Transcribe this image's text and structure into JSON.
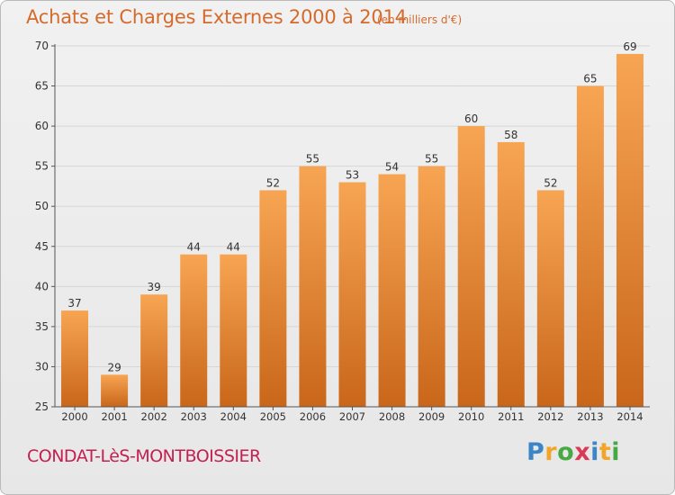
{
  "header": {
    "title": "Achats et Charges Externes 2000 à 2014",
    "subtitle": "(en milliers d'€)"
  },
  "footer": {
    "commune": "CONDAT-LèS-MONTBOISSIER",
    "logo_text": "Proxiti"
  },
  "colors": {
    "bar_light": "#f7a553",
    "bar_dark": "#c9661a",
    "title": "#d46b2c",
    "commune": "#c41f50",
    "grid": "#d6d6d6"
  },
  "chart_data": {
    "type": "bar",
    "title": "Achats et Charges Externes 2000 à 2014",
    "subtitle": "(en milliers d'€)",
    "xlabel": "",
    "ylabel": "",
    "categories": [
      "2000",
      "2001",
      "2002",
      "2003",
      "2004",
      "2005",
      "2006",
      "2007",
      "2008",
      "2009",
      "2010",
      "2011",
      "2012",
      "2013",
      "2014"
    ],
    "values": [
      37,
      29,
      39,
      44,
      44,
      52,
      55,
      53,
      54,
      55,
      60,
      58,
      52,
      65,
      69
    ],
    "ylim": [
      25,
      70
    ],
    "yticks": [
      25,
      30,
      35,
      40,
      45,
      50,
      55,
      60,
      65,
      70
    ],
    "grid": true,
    "legend": "none"
  }
}
